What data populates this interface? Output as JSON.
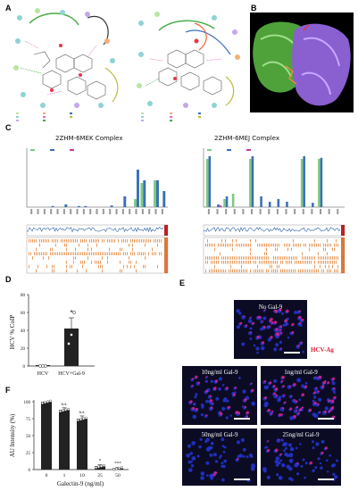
{
  "panels": {
    "a": "A",
    "b": "B",
    "c": "C",
    "d": "D",
    "e": "E",
    "f": "F"
  },
  "panel_c": {
    "title_left": "2ZHM-6MEK Complex",
    "title_right": "2ZHM-6MEJ Complex"
  },
  "panel_d": {
    "ylabel": "HCV % CoIP",
    "star": "*"
  },
  "panel_e": {
    "labels": {
      "no_gal": "No Gal-9",
      "hcv_ag": "HCV-Ag",
      "gal10": "10ng/ml Gal-9",
      "gal1": "1ng/ml Gal-9",
      "gal50": "50ng/ml Gal-9",
      "gal25": "25ng/ml Gal-9"
    },
    "colors": {
      "nuclei": "#2233cc",
      "antigen": "#dd2288",
      "background": "#0b0b24"
    }
  },
  "panel_f": {
    "ylabel": "AU Intensity (%)",
    "xlabel": "Galectin-9 (ng/ml)"
  },
  "chart_data": [
    {
      "type": "bar",
      "panel": "C-left",
      "title": "2ZHM-6MEK Complex",
      "series": [
        {
          "name": "green",
          "color": "#7fc97f",
          "values": [
            0.0,
            0.0,
            0.0,
            0.0,
            0.0,
            0.0,
            0.0,
            0.0,
            0.0,
            0.0,
            0.0,
            0.0,
            0.0,
            0.0,
            0.0,
            0.0,
            0.15,
            0.45,
            0.0,
            0.5,
            0.0
          ]
        },
        {
          "name": "blue",
          "color": "#3a6fb8",
          "values": [
            0.0,
            0.0,
            0.0,
            0.02,
            0.0,
            0.05,
            0.0,
            0.02,
            0.02,
            0.0,
            0.0,
            0.0,
            0.03,
            0.0,
            0.2,
            0.0,
            0.7,
            0.5,
            0.0,
            0.5,
            0.3
          ]
        }
      ],
      "ylim": [
        0,
        1.0
      ]
    },
    {
      "type": "bar",
      "panel": "C-right",
      "title": "2ZHM-6MEJ Complex",
      "series": [
        {
          "name": "green",
          "color": "#7fc97f",
          "values": [
            0.9,
            0.0,
            0.15,
            0.25,
            0.0,
            0.9,
            0.0,
            0.0,
            0.0,
            0.0,
            0.0,
            0.9,
            0.0,
            0.9,
            0.0,
            0.0
          ]
        },
        {
          "name": "blue",
          "color": "#3a6fb8",
          "values": [
            0.95,
            0.05,
            0.2,
            0.0,
            0.0,
            0.95,
            0.2,
            0.1,
            0.15,
            0.1,
            0.0,
            0.95,
            0.08,
            0.92,
            0.0,
            0.0
          ]
        },
        {
          "name": "pink",
          "color": "#c03a9a",
          "values": [
            0.0,
            0.03,
            0.0,
            0.0,
            0.0,
            0.0,
            0.0,
            0.0,
            0.0,
            0.0,
            0.0,
            0.0,
            0.0,
            0.0,
            0.0,
            0.0
          ]
        }
      ],
      "ylim": [
        0,
        1.0
      ]
    },
    {
      "type": "bar",
      "panel": "D",
      "categories": [
        "HCV",
        "HCV+Gal-9"
      ],
      "values": [
        0,
        42
      ],
      "errors": [
        0,
        12
      ],
      "points": [
        [
          0,
          0,
          0
        ],
        [
          25,
          35,
          60
        ]
      ],
      "ylabel": "HCV % CoIP",
      "yticks": [
        0,
        20,
        40,
        60,
        80
      ],
      "ylim": [
        0,
        80
      ]
    },
    {
      "type": "bar",
      "panel": "F",
      "categories": [
        "0",
        "1",
        "10",
        "25",
        "50"
      ],
      "values": [
        100,
        88,
        75,
        5,
        2
      ],
      "errors": [
        0,
        3,
        4,
        2,
        1
      ],
      "annotations": [
        "",
        "n.s.",
        "n.s.",
        "*",
        "***"
      ],
      "ylabel": "AU Intensity (%)",
      "xlabel": "Galectin-9 (ng/ml)",
      "yticks": [
        0,
        25,
        50,
        75,
        100
      ],
      "ylim": [
        0,
        100
      ]
    }
  ]
}
